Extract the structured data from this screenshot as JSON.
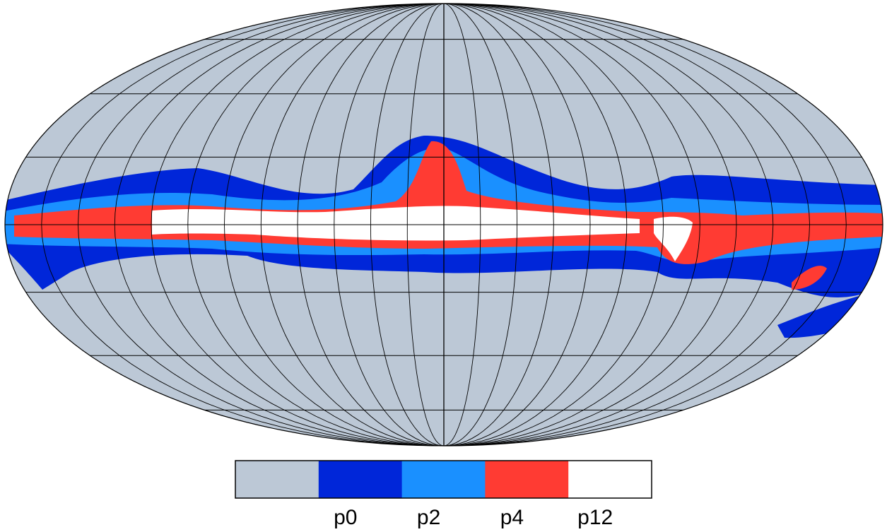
{
  "colorbar": {
    "colors": [
      "#bcc8d6",
      "#0026d9",
      "#1a90ff",
      "#ff3b33",
      "#ffffff"
    ],
    "labels": [
      "p0",
      "p2",
      "p4",
      "p12"
    ]
  }
}
